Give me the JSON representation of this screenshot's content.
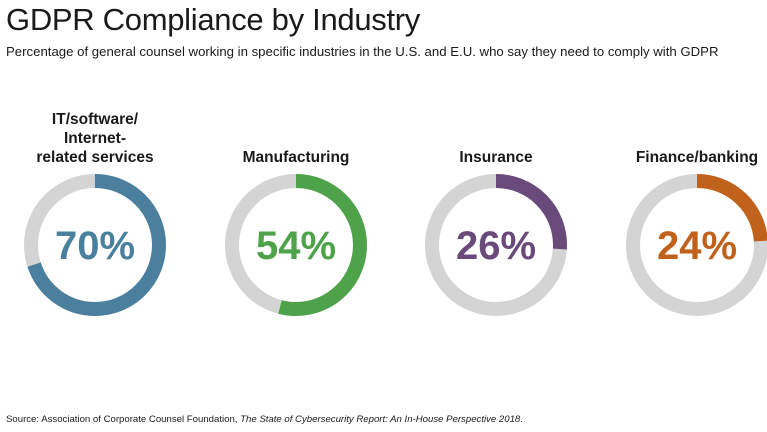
{
  "header": {
    "title": "GDPR Compliance by Industry",
    "subtitle": "Percentage of general counsel working in specific industries in the U.S. and E.U. who say they need to comply with GDPR"
  },
  "chart_data": {
    "type": "donut",
    "track_color": "#d4d4d4",
    "items": [
      {
        "label": "IT/software/\nInternet-\nrelated services",
        "value": 70,
        "display": "70%",
        "color": "#4a7f9d"
      },
      {
        "label": "Manufacturing",
        "value": 54,
        "display": "54%",
        "color": "#4ea34a"
      },
      {
        "label": "Insurance",
        "value": 26,
        "display": "26%",
        "color": "#6a4a7a"
      },
      {
        "label": "Finance/banking",
        "value": 24,
        "display": "24%",
        "color": "#c0621c"
      }
    ]
  },
  "footer": {
    "source_prefix": "Source: Association of Corporate Counsel Foundation, ",
    "source_title": "The State of Cybersecurity Report: An In-House Perspective 2018",
    "source_suffix": "."
  }
}
